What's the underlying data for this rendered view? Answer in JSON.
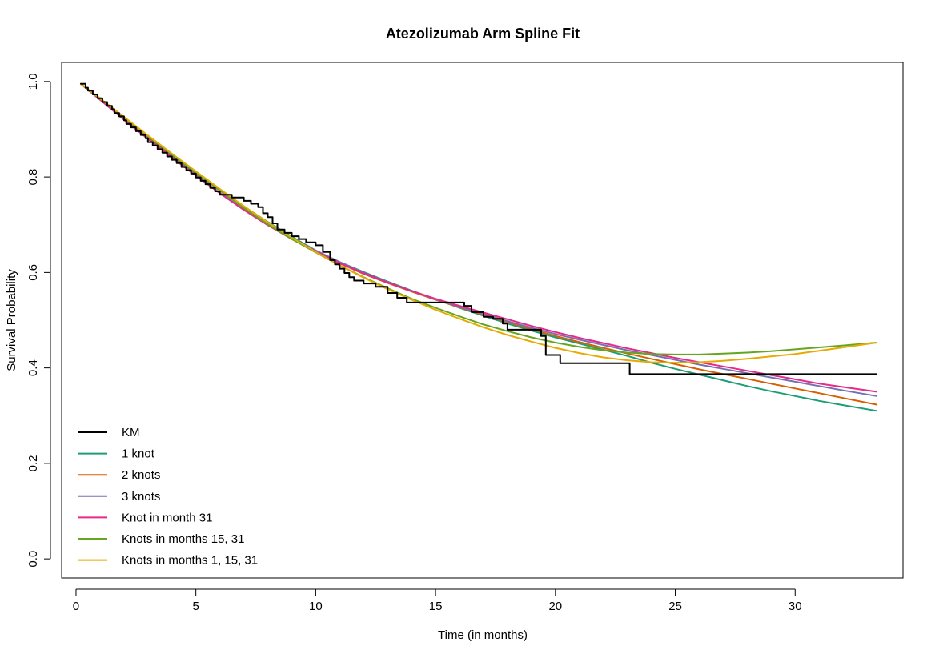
{
  "chart_data": {
    "type": "line",
    "title": "Atezolizumab Arm Spline Fit",
    "xlabel": "Time (in months)",
    "ylabel": "Survival Probability",
    "xlim": [
      -0.6,
      34.5
    ],
    "ylim": [
      -0.04,
      1.04
    ],
    "xticks": [
      0,
      5,
      10,
      15,
      20,
      25,
      30
    ],
    "yticks": [
      0.0,
      0.2,
      0.4,
      0.6,
      0.8,
      1.0
    ],
    "xtick_labels": [
      "0",
      "5",
      "10",
      "15",
      "20",
      "25",
      "30"
    ],
    "ytick_labels": [
      "0.0",
      "0.2",
      "0.4",
      "0.6",
      "0.8",
      "1.0"
    ],
    "grid": false,
    "legend_position": "bottom-left",
    "series": [
      {
        "name": "KM",
        "color": "#000000",
        "step": true,
        "x": [
          0.2,
          0.4,
          0.5,
          0.7,
          0.9,
          1.1,
          1.3,
          1.5,
          1.6,
          1.8,
          2.0,
          2.1,
          2.3,
          2.5,
          2.7,
          2.9,
          3.0,
          3.2,
          3.4,
          3.6,
          3.8,
          4.0,
          4.2,
          4.4,
          4.6,
          4.8,
          5.0,
          5.2,
          5.4,
          5.6,
          5.8,
          6.0,
          6.5,
          7.0,
          7.3,
          7.6,
          7.8,
          8.0,
          8.2,
          8.4,
          8.7,
          9.0,
          9.3,
          9.6,
          10.0,
          10.3,
          10.6,
          10.8,
          11.0,
          11.2,
          11.4,
          11.6,
          12.0,
          12.5,
          13.0,
          13.4,
          13.8,
          15.5,
          16.2,
          16.5,
          17.0,
          17.4,
          17.8,
          18.0,
          19.0,
          19.4,
          19.6,
          20.2,
          23.1,
          33.4
        ],
        "y": [
          0.995,
          0.987,
          0.981,
          0.973,
          0.965,
          0.957,
          0.949,
          0.942,
          0.934,
          0.927,
          0.919,
          0.911,
          0.904,
          0.896,
          0.888,
          0.881,
          0.873,
          0.866,
          0.858,
          0.851,
          0.843,
          0.836,
          0.829,
          0.821,
          0.814,
          0.807,
          0.799,
          0.792,
          0.785,
          0.777,
          0.77,
          0.763,
          0.757,
          0.75,
          0.744,
          0.737,
          0.724,
          0.716,
          0.703,
          0.69,
          0.683,
          0.676,
          0.67,
          0.663,
          0.657,
          0.643,
          0.626,
          0.617,
          0.608,
          0.599,
          0.59,
          0.583,
          0.577,
          0.57,
          0.557,
          0.547,
          0.537,
          0.537,
          0.53,
          0.517,
          0.507,
          0.503,
          0.493,
          0.48,
          0.48,
          0.467,
          0.427,
          0.41,
          0.387,
          0.387
        ]
      },
      {
        "name": "1 knot",
        "color": "#1B9E77",
        "step": false,
        "x": [
          0.2,
          1,
          2,
          3,
          4,
          5,
          6,
          7,
          8,
          9,
          10,
          11,
          12,
          13,
          14,
          15,
          16,
          17,
          18,
          19,
          20,
          21,
          22,
          23,
          24,
          25,
          26,
          27,
          28,
          29,
          30,
          31,
          32,
          33.4
        ],
        "y": [
          0.995,
          0.963,
          0.922,
          0.883,
          0.845,
          0.808,
          0.772,
          0.738,
          0.706,
          0.675,
          0.646,
          0.622,
          0.601,
          0.581,
          0.562,
          0.544,
          0.526,
          0.509,
          0.493,
          0.478,
          0.464,
          0.451,
          0.438,
          0.425,
          0.411,
          0.398,
          0.386,
          0.374,
          0.362,
          0.351,
          0.341,
          0.331,
          0.322,
          0.31
        ]
      },
      {
        "name": "2 knots",
        "color": "#D95F02",
        "step": false,
        "x": [
          0.2,
          1,
          2,
          3,
          4,
          5,
          6,
          7,
          8,
          9,
          10,
          11,
          12,
          13,
          14,
          15,
          16,
          17,
          18,
          19,
          20,
          21,
          22,
          23,
          24,
          25,
          26,
          27,
          28,
          29,
          30,
          31,
          32,
          33.4
        ],
        "y": [
          0.995,
          0.962,
          0.921,
          0.881,
          0.842,
          0.804,
          0.767,
          0.733,
          0.701,
          0.671,
          0.644,
          0.619,
          0.597,
          0.578,
          0.56,
          0.543,
          0.527,
          0.511,
          0.496,
          0.481,
          0.467,
          0.454,
          0.442,
          0.43,
          0.419,
          0.408,
          0.397,
          0.387,
          0.377,
          0.367,
          0.357,
          0.347,
          0.337,
          0.323
        ]
      },
      {
        "name": "3 knots",
        "color": "#7570B3",
        "step": false,
        "x": [
          0.2,
          1,
          2,
          3,
          4,
          5,
          6,
          7,
          8,
          9,
          10,
          11,
          12,
          13,
          14,
          15,
          16,
          17,
          18,
          19,
          20,
          21,
          22,
          23,
          24,
          25,
          26,
          27,
          28,
          29,
          30,
          31,
          32,
          33.4
        ],
        "y": [
          0.995,
          0.962,
          0.92,
          0.88,
          0.841,
          0.803,
          0.767,
          0.733,
          0.701,
          0.672,
          0.646,
          0.622,
          0.6,
          0.58,
          0.561,
          0.544,
          0.528,
          0.513,
          0.498,
          0.484,
          0.471,
          0.459,
          0.448,
          0.437,
          0.427,
          0.417,
          0.407,
          0.398,
          0.389,
          0.38,
          0.371,
          0.362,
          0.353,
          0.341
        ]
      },
      {
        "name": "Knot in month 31",
        "color": "#E7298A",
        "step": false,
        "x": [
          0.2,
          1,
          2,
          3,
          4,
          5,
          6,
          7,
          8,
          9,
          10,
          11,
          12,
          13,
          14,
          15,
          16,
          17,
          18,
          19,
          20,
          21,
          22,
          23,
          24,
          25,
          26,
          27,
          28,
          29,
          30,
          31,
          32,
          33.4
        ],
        "y": [
          0.995,
          0.962,
          0.92,
          0.88,
          0.841,
          0.803,
          0.766,
          0.731,
          0.699,
          0.67,
          0.644,
          0.62,
          0.598,
          0.579,
          0.561,
          0.545,
          0.53,
          0.516,
          0.502,
          0.488,
          0.475,
          0.463,
          0.452,
          0.441,
          0.431,
          0.421,
          0.412,
          0.403,
          0.394,
          0.385,
          0.376,
          0.367,
          0.36,
          0.35
        ]
      },
      {
        "name": "Knots in months 15, 31",
        "color": "#66A61E",
        "step": false,
        "x": [
          0.2,
          1,
          2,
          3,
          4,
          5,
          6,
          7,
          8,
          9,
          10,
          11,
          12,
          13,
          14,
          15,
          16,
          17,
          18,
          19,
          20,
          21,
          22,
          23,
          24,
          25,
          26,
          27,
          28,
          29,
          30,
          31,
          32,
          33.4
        ],
        "y": [
          0.995,
          0.964,
          0.925,
          0.886,
          0.848,
          0.81,
          0.772,
          0.735,
          0.701,
          0.67,
          0.642,
          0.615,
          0.59,
          0.567,
          0.545,
          0.526,
          0.508,
          0.491,
          0.477,
          0.464,
          0.453,
          0.444,
          0.437,
          0.432,
          0.429,
          0.428,
          0.428,
          0.43,
          0.432,
          0.435,
          0.439,
          0.443,
          0.447,
          0.453
        ]
      },
      {
        "name": "Knots in months 1, 15, 31",
        "color": "#E6AB02",
        "step": false,
        "x": [
          0.2,
          1,
          2,
          3,
          4,
          5,
          6,
          7,
          8,
          9,
          10,
          11,
          12,
          13,
          14,
          15,
          16,
          17,
          18,
          19,
          20,
          21,
          22,
          23,
          24,
          25,
          26,
          27,
          28,
          29,
          30,
          31,
          32,
          33.4
        ],
        "y": [
          0.995,
          0.965,
          0.926,
          0.887,
          0.849,
          0.812,
          0.775,
          0.739,
          0.705,
          0.673,
          0.643,
          0.615,
          0.589,
          0.565,
          0.543,
          0.522,
          0.503,
          0.485,
          0.469,
          0.455,
          0.442,
          0.431,
          0.422,
          0.416,
          0.412,
          0.411,
          0.412,
          0.415,
          0.419,
          0.424,
          0.429,
          0.436,
          0.443,
          0.453
        ]
      }
    ]
  }
}
